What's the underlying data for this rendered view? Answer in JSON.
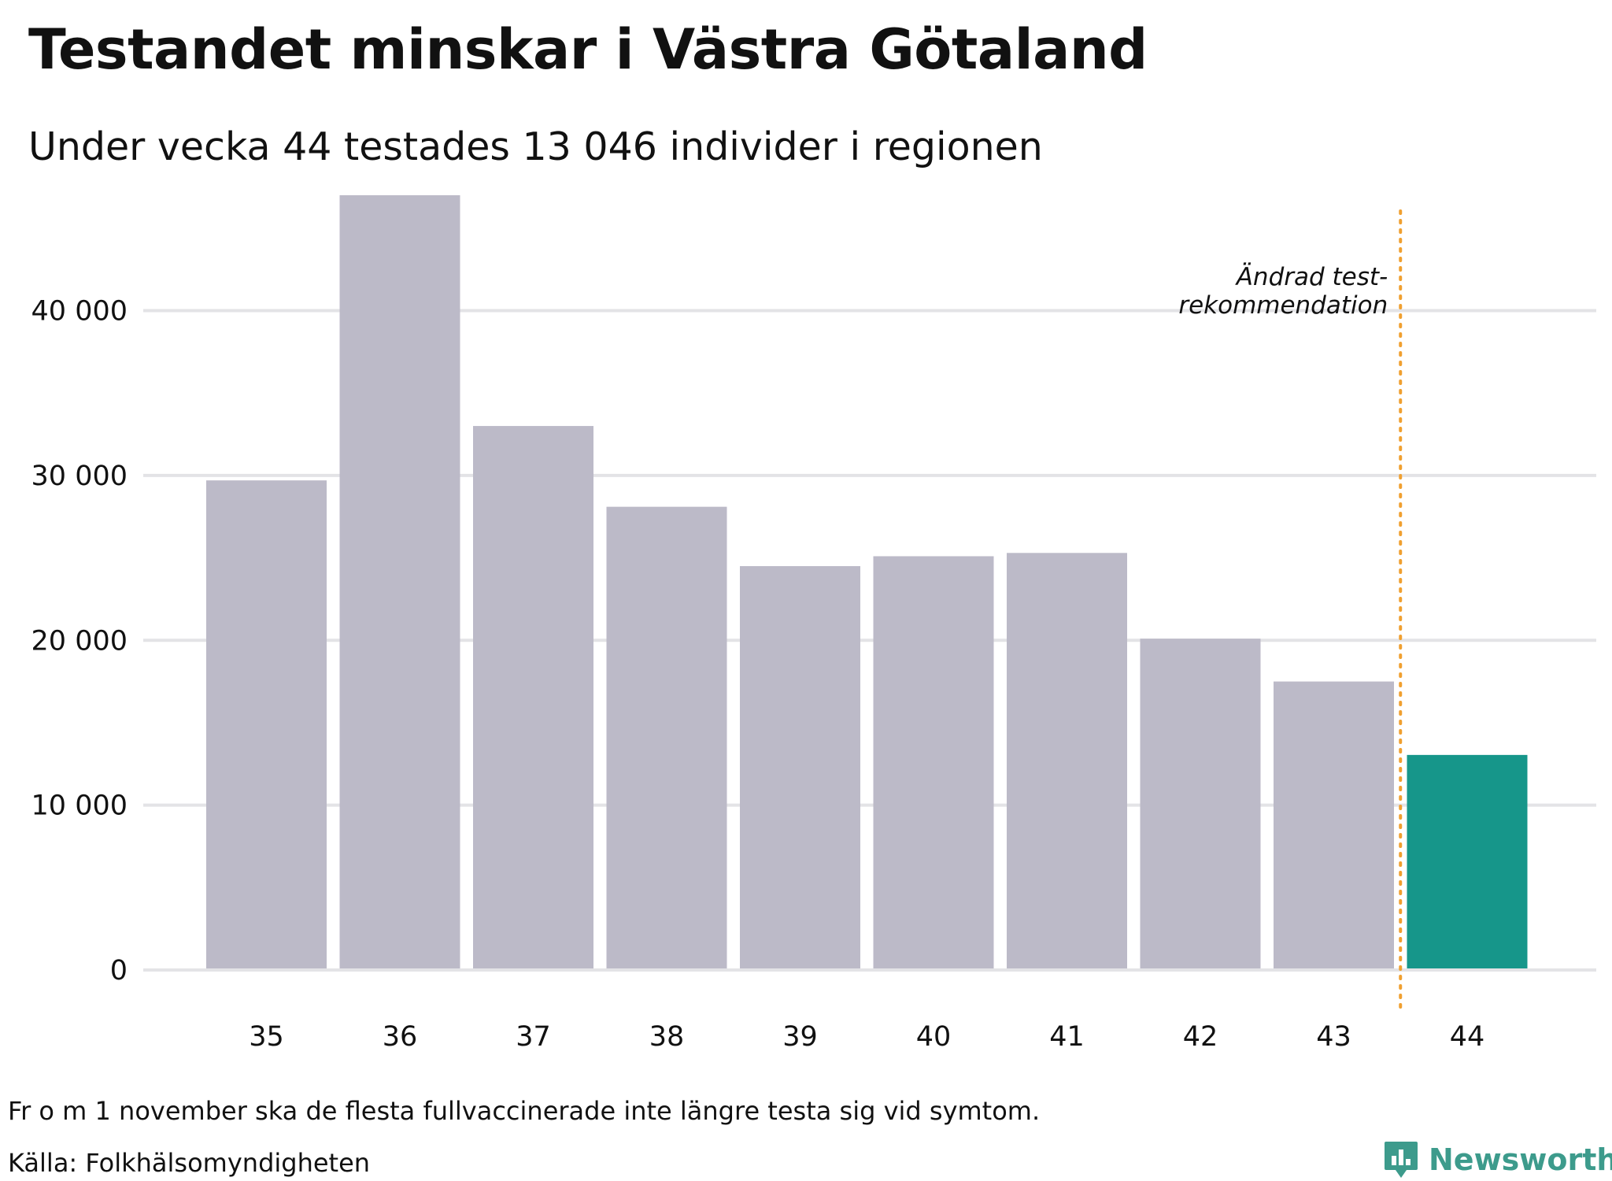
{
  "header": {
    "title": "Testandet minskar i Västra Götaland",
    "subtitle": "Under vecka 44 testades 13 046 individer i regionen"
  },
  "footer": {
    "note": "Fr o m 1 november ska de flesta fullvaccinerade inte längre testa sig vid symtom.",
    "source": "Källa: Folkhälsomyndigheten",
    "brand": "Newsworthy",
    "brand_icon": "bar-chart-speech-bubble-icon"
  },
  "colors": {
    "bar": "#bcbac8",
    "highlight": "#16968a",
    "gridline": "#e3e3e6",
    "annotation_line": "#f0a030",
    "brand": "#3d9b8c",
    "text": "#111111"
  },
  "chart_data": {
    "type": "bar",
    "title": "Testandet minskar i Västra Götaland",
    "subtitle": "Under vecka 44 testades 13 046 individer i regionen",
    "xlabel": "",
    "ylabel": "",
    "categories": [
      "35",
      "36",
      "37",
      "38",
      "39",
      "40",
      "41",
      "42",
      "43",
      "44"
    ],
    "values": [
      29700,
      47000,
      33000,
      28100,
      24500,
      25100,
      25300,
      20100,
      17500,
      13046
    ],
    "highlight_index": 9,
    "ylim": [
      0,
      48000
    ],
    "yticks": [
      0,
      10000,
      20000,
      30000,
      40000
    ],
    "ytick_labels": [
      "0",
      "10 000",
      "20 000",
      "30 000",
      "40 000"
    ],
    "grid": true,
    "annotation": {
      "position": "between 43 and 44",
      "lines": [
        "Ändrad test-",
        "rekommendation"
      ]
    }
  }
}
